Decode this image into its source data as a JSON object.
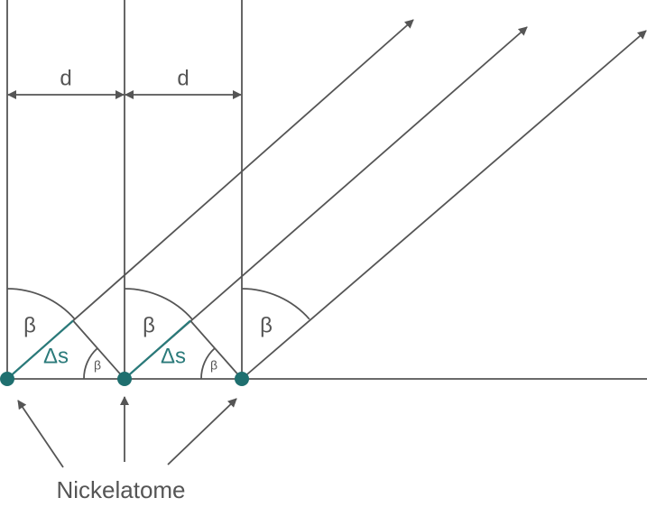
{
  "labels": {
    "spacing": [
      "d",
      "d"
    ],
    "angles": [
      "β",
      "β",
      "β"
    ],
    "path_difference": [
      "Δs",
      "Δs"
    ],
    "small_angles": [
      "β",
      "β"
    ],
    "atoms": "Nickelatome"
  }
}
